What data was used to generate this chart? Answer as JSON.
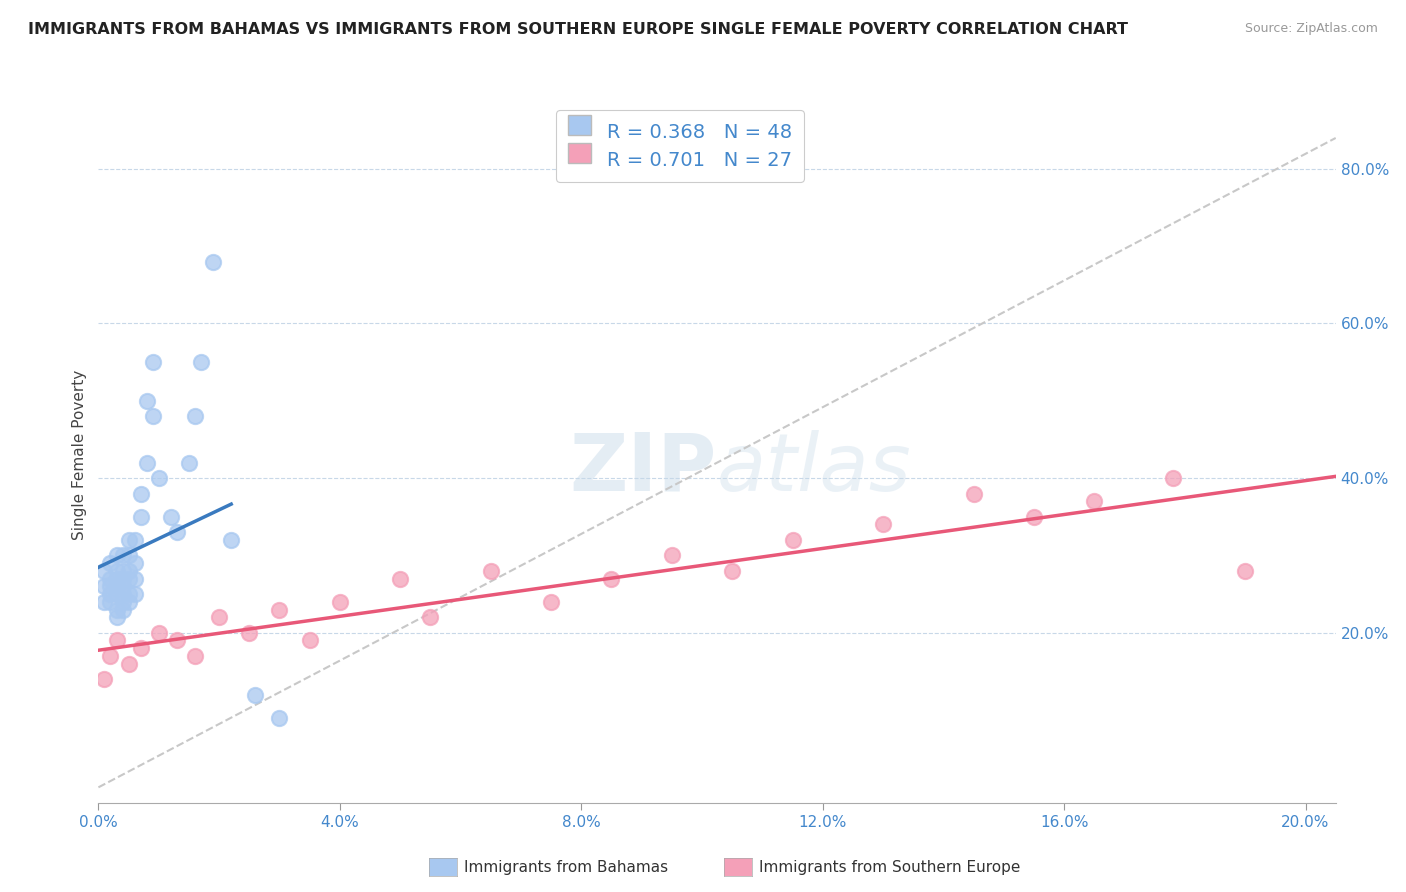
{
  "title": "IMMIGRANTS FROM BAHAMAS VS IMMIGRANTS FROM SOUTHERN EUROPE SINGLE FEMALE POVERTY CORRELATION CHART",
  "source": "Source: ZipAtlas.com",
  "ylabel": "Single Female Poverty",
  "xlim": [
    0.0,
    0.205
  ],
  "ylim": [
    -0.02,
    0.88
  ],
  "x_tick_vals": [
    0.0,
    0.04,
    0.08,
    0.12,
    0.16,
    0.2
  ],
  "x_tick_labels": [
    "0.0%",
    "4.0%",
    "8.0%",
    "12.0%",
    "16.0%",
    "20.0%"
  ],
  "y_tick_vals": [
    0.2,
    0.4,
    0.6,
    0.8
  ],
  "y_tick_labels": [
    "20.0%",
    "40.0%",
    "60.0%",
    "80.0%"
  ],
  "bahamas_R": 0.368,
  "bahamas_N": 48,
  "southern_europe_R": 0.701,
  "southern_europe_N": 27,
  "bahamas_color": "#a8c8f0",
  "southern_europe_color": "#f4a0b8",
  "bahamas_line_color": "#3a7abf",
  "southern_europe_line_color": "#e85878",
  "diagonal_color": "#c8c8c8",
  "legend_label_1": "Immigrants from Bahamas",
  "legend_label_2": "Immigrants from Southern Europe",
  "watermark": "ZIPatlas",
  "bahamas_x": [
    0.001,
    0.001,
    0.001,
    0.002,
    0.002,
    0.002,
    0.002,
    0.002,
    0.003,
    0.003,
    0.003,
    0.003,
    0.003,
    0.003,
    0.003,
    0.004,
    0.004,
    0.004,
    0.004,
    0.004,
    0.004,
    0.004,
    0.005,
    0.005,
    0.005,
    0.005,
    0.005,
    0.005,
    0.006,
    0.006,
    0.006,
    0.006,
    0.007,
    0.007,
    0.008,
    0.008,
    0.009,
    0.009,
    0.01,
    0.012,
    0.013,
    0.015,
    0.016,
    0.017,
    0.019,
    0.022,
    0.026,
    0.03
  ],
  "bahamas_y": [
    0.24,
    0.26,
    0.28,
    0.24,
    0.25,
    0.26,
    0.27,
    0.29,
    0.22,
    0.23,
    0.25,
    0.26,
    0.27,
    0.28,
    0.3,
    0.23,
    0.24,
    0.25,
    0.26,
    0.27,
    0.28,
    0.3,
    0.24,
    0.25,
    0.27,
    0.28,
    0.3,
    0.32,
    0.25,
    0.27,
    0.29,
    0.32,
    0.35,
    0.38,
    0.42,
    0.5,
    0.48,
    0.55,
    0.4,
    0.35,
    0.33,
    0.42,
    0.48,
    0.55,
    0.68,
    0.32,
    0.12,
    0.09
  ],
  "southern_europe_x": [
    0.001,
    0.002,
    0.003,
    0.005,
    0.007,
    0.01,
    0.013,
    0.016,
    0.02,
    0.025,
    0.03,
    0.035,
    0.04,
    0.05,
    0.055,
    0.065,
    0.075,
    0.085,
    0.095,
    0.105,
    0.115,
    0.13,
    0.145,
    0.155,
    0.165,
    0.178,
    0.19
  ],
  "southern_europe_y": [
    0.14,
    0.17,
    0.19,
    0.16,
    0.18,
    0.2,
    0.19,
    0.17,
    0.22,
    0.2,
    0.23,
    0.19,
    0.24,
    0.27,
    0.22,
    0.28,
    0.24,
    0.27,
    0.3,
    0.28,
    0.32,
    0.34,
    0.38,
    0.35,
    0.37,
    0.4,
    0.28
  ]
}
